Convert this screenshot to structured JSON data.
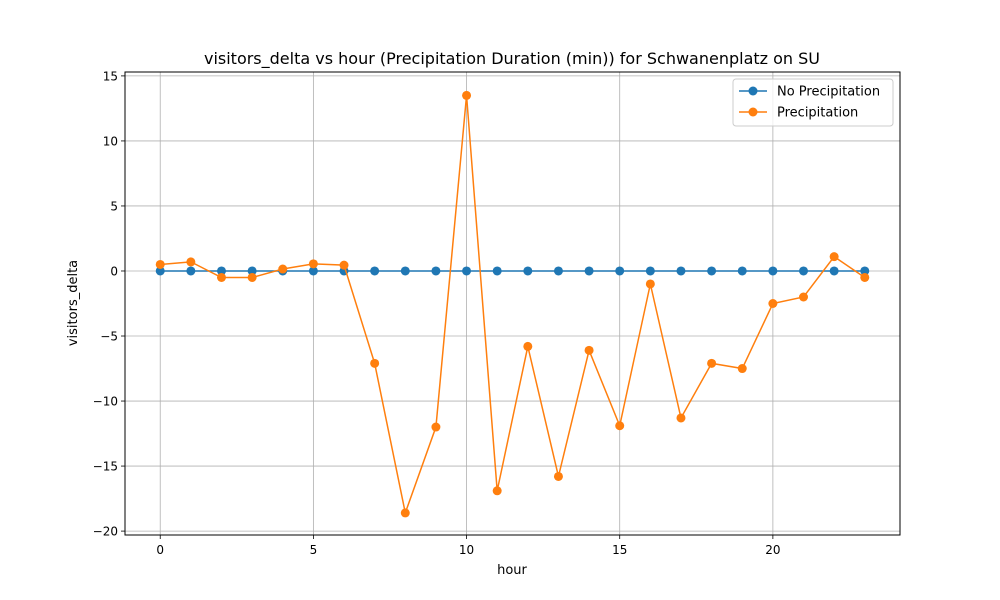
{
  "chart_data": {
    "type": "line",
    "title": "visitors_delta vs hour (Precipitation Duration (min)) for Schwanenplatz on SU",
    "xlabel": "hour",
    "ylabel": "visitors_delta",
    "xlim": [
      -1.15,
      24.15
    ],
    "ylim": [
      -20.3,
      15.3
    ],
    "xticks": [
      0,
      5,
      10,
      15,
      20
    ],
    "yticks": [
      -20,
      -15,
      -10,
      -5,
      0,
      5,
      10,
      15
    ],
    "ytick_labels": [
      "−20",
      "−15",
      "−10",
      "−5",
      "0",
      "5",
      "10",
      "15"
    ],
    "grid": true,
    "legend_position": "top-right",
    "x": [
      0,
      1,
      2,
      3,
      4,
      5,
      6,
      7,
      8,
      9,
      10,
      11,
      12,
      13,
      14,
      15,
      16,
      17,
      18,
      19,
      20,
      21,
      22,
      23
    ],
    "series": [
      {
        "name": "No Precipitation",
        "color": "#1f77b4",
        "values": [
          0,
          0,
          0,
          0,
          0,
          0,
          0,
          0,
          0,
          0,
          0,
          0,
          0,
          0,
          0,
          0,
          0,
          0,
          0,
          0,
          0,
          0,
          0,
          0
        ]
      },
      {
        "name": "Precipitation",
        "color": "#ff7f0e",
        "values": [
          0.5,
          0.7,
          -0.5,
          -0.5,
          0.15,
          0.55,
          0.45,
          -7.1,
          -18.6,
          -12.0,
          13.5,
          -16.9,
          -5.8,
          -15.8,
          -6.1,
          -11.9,
          -1.0,
          -11.3,
          -7.1,
          -7.5,
          -2.5,
          -2.0,
          1.1,
          -0.5
        ]
      }
    ]
  }
}
